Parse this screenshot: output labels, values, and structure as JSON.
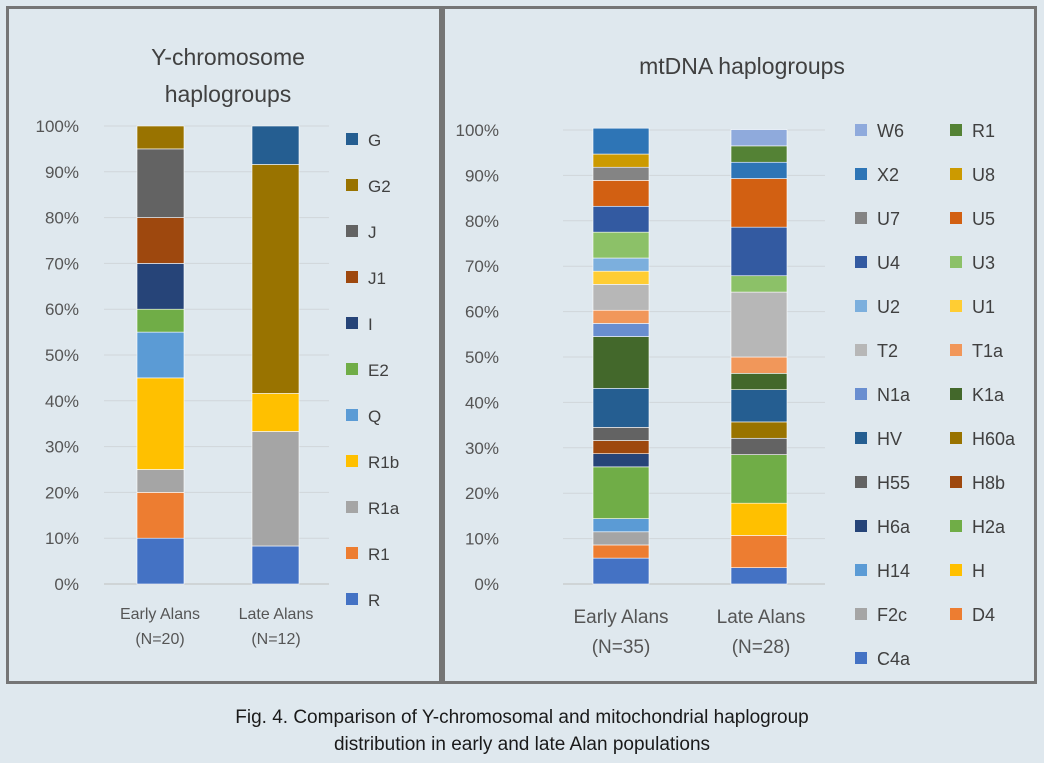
{
  "figure": {
    "caption_line1": "Fig. 4. Comparison of Y-chromosomal and mitochondrial haplogroup",
    "caption_line2": "distribution in early and late Alan populations"
  },
  "chart_data": [
    {
      "id": "y",
      "type": "bar",
      "stacked": true,
      "percent": true,
      "title": "Y-chromosome haplogroups",
      "title_lines": [
        "Y-chromosome",
        "haplogroups"
      ],
      "categories": [
        "Early Alans (N=20)",
        "Late Alans (N=12)"
      ],
      "category_lines": [
        [
          "Early Alans",
          "(N=20)"
        ],
        [
          "Late Alans",
          "(N=12)"
        ]
      ],
      "ylim": [
        0,
        100
      ],
      "yticks": [
        "0%",
        "10%",
        "20%",
        "30%",
        "40%",
        "50%",
        "60%",
        "70%",
        "80%",
        "90%",
        "100%"
      ],
      "grid": true,
      "legend_position": "right",
      "series": [
        {
          "name": "R",
          "color": "#4472c4",
          "values": [
            10,
            8.3
          ]
        },
        {
          "name": "R1",
          "color": "#ed7d31",
          "values": [
            10,
            0
          ]
        },
        {
          "name": "R1a",
          "color": "#a5a5a5",
          "values": [
            5,
            25
          ]
        },
        {
          "name": "R1b",
          "color": "#ffc000",
          "values": [
            20,
            8.3
          ]
        },
        {
          "name": "Q",
          "color": "#5b9bd5",
          "values": [
            10,
            0
          ]
        },
        {
          "name": "E2",
          "color": "#70ad47",
          "values": [
            5,
            0
          ]
        },
        {
          "name": "I",
          "color": "#264478",
          "values": [
            10,
            0
          ]
        },
        {
          "name": "J1",
          "color": "#9e480e",
          "values": [
            10,
            0
          ]
        },
        {
          "name": "J",
          "color": "#636363",
          "values": [
            15,
            0
          ]
        },
        {
          "name": "G2",
          "color": "#997300",
          "values": [
            5,
            50
          ]
        },
        {
          "name": "G",
          "color": "#255e91",
          "values": [
            0,
            8.4
          ]
        }
      ]
    },
    {
      "id": "mt",
      "type": "bar",
      "stacked": true,
      "percent": true,
      "title": "mtDNA haplogroups",
      "title_lines": [
        "mtDNA haplogroups"
      ],
      "categories": [
        "Early Alans (N=35)",
        "Late Alans (N=28)"
      ],
      "category_lines": [
        [
          "Early Alans",
          "(N=35)"
        ],
        [
          "Late Alans",
          "(N=28)"
        ]
      ],
      "ylim": [
        0,
        100
      ],
      "yticks": [
        "0%",
        "10%",
        "20%",
        "30%",
        "40%",
        "50%",
        "60%",
        "70%",
        "80%",
        "90%",
        "100%"
      ],
      "grid": true,
      "legend_position": "right",
      "series": [
        {
          "name": "C4a",
          "color": "#4472c4",
          "values": [
            5.7,
            3.6
          ]
        },
        {
          "name": "D4",
          "color": "#ed7d31",
          "values": [
            2.9,
            7.1
          ]
        },
        {
          "name": "F2c",
          "color": "#a5a5a5",
          "values": [
            2.9,
            0
          ]
        },
        {
          "name": "H",
          "color": "#ffc000",
          "values": [
            0,
            7.1
          ]
        },
        {
          "name": "H14",
          "color": "#5b9bd5",
          "values": [
            2.9,
            0
          ]
        },
        {
          "name": "H2a",
          "color": "#70ad47",
          "values": [
            11.4,
            10.7
          ]
        },
        {
          "name": "H6a",
          "color": "#264478",
          "values": [
            2.9,
            0
          ]
        },
        {
          "name": "H8b",
          "color": "#9e480e",
          "values": [
            2.9,
            0
          ]
        },
        {
          "name": "H55",
          "color": "#636363",
          "values": [
            2.9,
            3.6
          ]
        },
        {
          "name": "H60a",
          "color": "#997300",
          "values": [
            0,
            3.6
          ]
        },
        {
          "name": "HV",
          "color": "#255e91",
          "values": [
            8.6,
            7.1
          ]
        },
        {
          "name": "K1a",
          "color": "#43682b",
          "values": [
            11.4,
            3.6
          ]
        },
        {
          "name": "N1a",
          "color": "#698ed0",
          "values": [
            2.9,
            0
          ]
        },
        {
          "name": "T1a",
          "color": "#f1975a",
          "values": [
            2.9,
            3.6
          ]
        },
        {
          "name": "T2",
          "color": "#b7b7b7",
          "values": [
            5.7,
            14.3
          ]
        },
        {
          "name": "U1",
          "color": "#ffcd33",
          "values": [
            2.9,
            0
          ]
        },
        {
          "name": "U2",
          "color": "#7cafdd",
          "values": [
            2.9,
            0
          ]
        },
        {
          "name": "U3",
          "color": "#8cc168",
          "values": [
            5.7,
            3.6
          ]
        },
        {
          "name": "U4",
          "color": "#335aa1",
          "values": [
            5.7,
            10.7
          ]
        },
        {
          "name": "U5",
          "color": "#d26012",
          "values": [
            5.7,
            10.7
          ]
        },
        {
          "name": "U7",
          "color": "#848484",
          "values": [
            2.9,
            0
          ]
        },
        {
          "name": "U8",
          "color": "#cc9a00",
          "values": [
            2.9,
            0
          ]
        },
        {
          "name": "X2",
          "color": "#2e75b6",
          "values": [
            5.7,
            3.6
          ]
        },
        {
          "name": "R1",
          "color": "#548235",
          "values": [
            0,
            3.6
          ]
        },
        {
          "name": "W6",
          "color": "#8faadc",
          "values": [
            0,
            3.6
          ]
        }
      ]
    }
  ]
}
